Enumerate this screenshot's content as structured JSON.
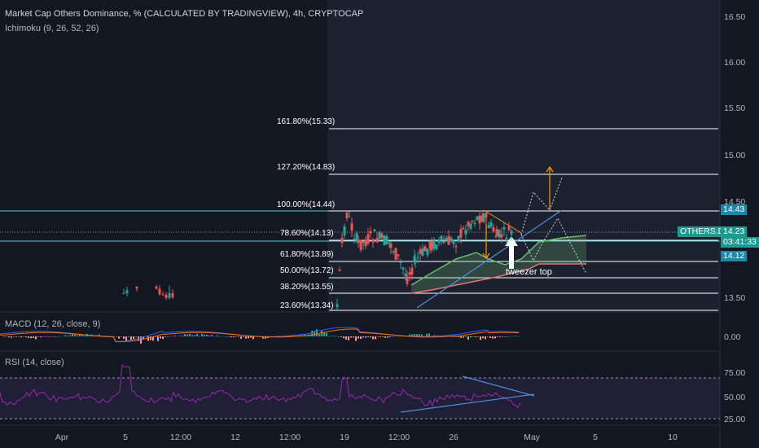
{
  "chart": {
    "title": "Market Cap Others Dominance, % (CALCULATED BY TRADINGVIEW), 4h, CRYPTOCAP",
    "indicator": "Ichimoku (9, 26, 52, 26)"
  },
  "price_axis": {
    "ticks": [
      "16.50",
      "16.00",
      "15.50",
      "15.00",
      "14.50",
      "13.50"
    ]
  },
  "time_axis": {
    "ticks": [
      "Apr",
      "5",
      "12:00",
      "12",
      "12:00",
      "19",
      "12:00",
      "26",
      "May",
      "5",
      "10"
    ]
  },
  "fib_levels": [
    {
      "label": "161.80%(15.33)"
    },
    {
      "label": "127.20%(14.83)"
    },
    {
      "label": "100.00%(14.44)"
    },
    {
      "label": "78.60%(14.13)"
    },
    {
      "label": "61.80%(13.89)"
    },
    {
      "label": "50.00%(13.72)"
    },
    {
      "label": "38.20%(13.55)"
    },
    {
      "label": "23.60%(13.34)"
    }
  ],
  "badges": {
    "level_high": "14.43",
    "symbol": "OTHERS.D",
    "last_price": "14.23",
    "countdown": "03:41:33",
    "level_low": "14.12"
  },
  "annotation": "tweezer top",
  "macd": {
    "title": "MACD (12, 26, close, 9)",
    "axis": [
      "0.00"
    ]
  },
  "rsi": {
    "title": "RSI (14, close)",
    "axis": [
      "75.00",
      "50.00",
      "25.00"
    ]
  },
  "colors": {
    "background": "#131722",
    "cyan_line": "#4dd0e1",
    "fib_line": "#ffffff",
    "bull": "#26a69a",
    "bear": "#ef5350",
    "cloud_green": "#66bb6a",
    "cloud_red": "#e57373",
    "trendline": "#4f8fdc",
    "orange": "#ff9800",
    "rsi_line": "#9c27b0",
    "badge_teal": "#1b9a8f",
    "badge_blue": "#1e88a8"
  }
}
